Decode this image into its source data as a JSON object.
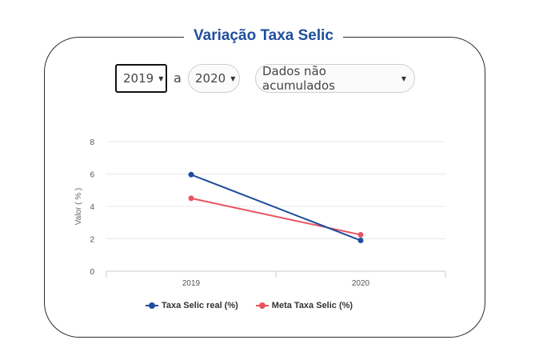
{
  "card": {
    "title": "Variação Taxa Selic"
  },
  "controls": {
    "start_year": "2019",
    "separator": "a",
    "end_year": "2020",
    "mode": "Dados não acumulados"
  },
  "chart_data": {
    "type": "line",
    "ylabel": "Valor ( % )",
    "xlabel": "",
    "categories": [
      "2019",
      "2020"
    ],
    "ylim": [
      0,
      8
    ],
    "yticks": [
      0,
      2,
      4,
      6,
      8
    ],
    "grid": true,
    "legend_position": "bottom",
    "series": [
      {
        "name": "Taxa Selic real (%)",
        "color": "#1f4e9c",
        "values": [
          5.96,
          1.9
        ]
      },
      {
        "name": "Meta Taxa Selic (%)",
        "color": "#e8535f",
        "values": [
          4.5,
          2.25
        ]
      }
    ]
  }
}
